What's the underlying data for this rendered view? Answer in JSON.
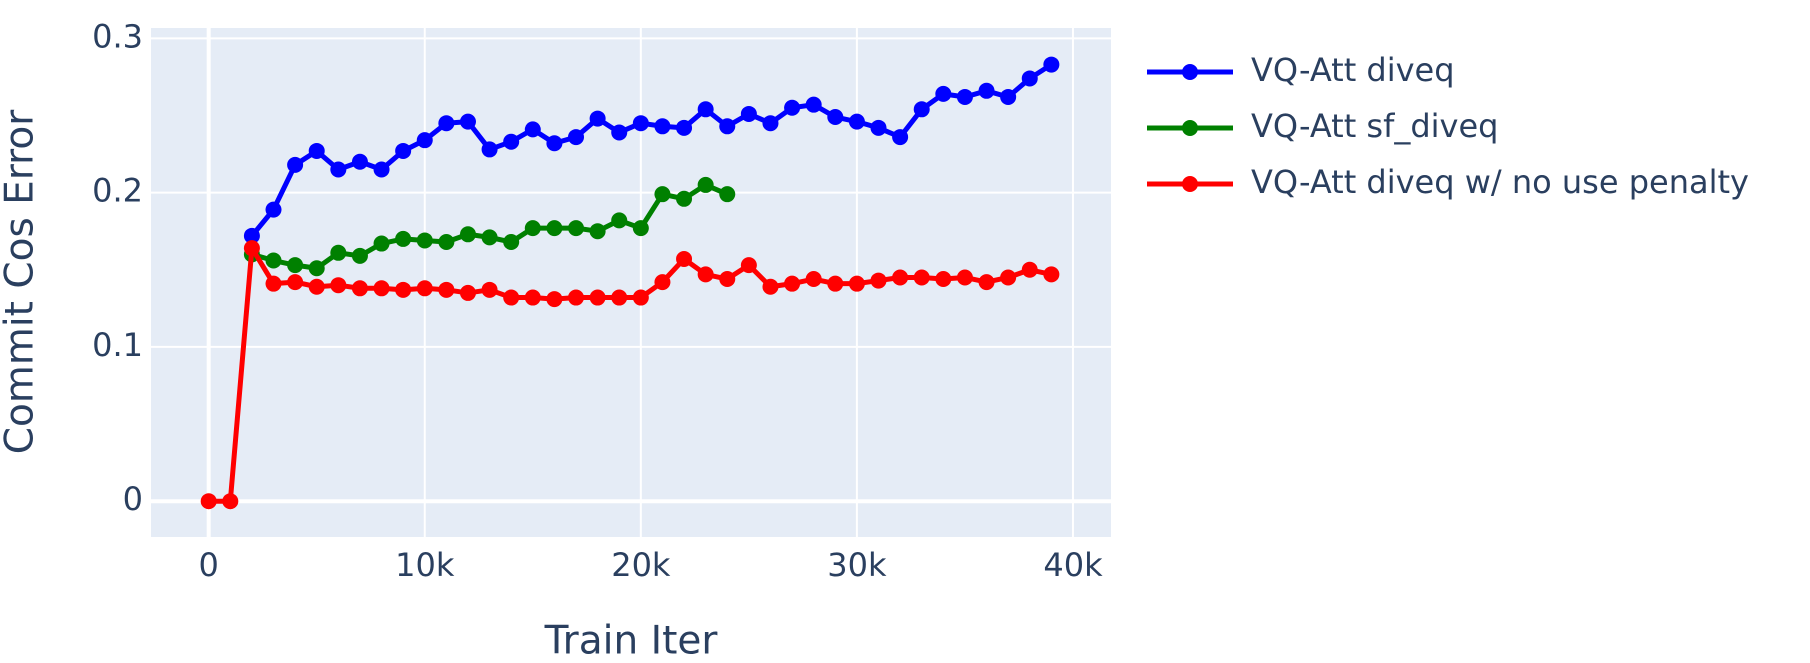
{
  "chart_data": {
    "type": "line",
    "x_label": "Train Iter",
    "y_label": "Commit Cos Error",
    "xlim": [
      -2670,
      41760
    ],
    "ylim": [
      -0.0232,
      0.3067
    ],
    "xticks": [
      0,
      {
        "value": 10000,
        "label": "10k"
      },
      {
        "value": 20000,
        "label": "20k"
      },
      {
        "value": 30000,
        "label": "30k"
      },
      {
        "value": 40000,
        "label": "40k"
      }
    ],
    "yticks": [
      0,
      0.1,
      0.2,
      0.3
    ],
    "grid": true,
    "legend": "outside right",
    "series": [
      {
        "name": "VQ-Att diveq",
        "color": "#0000ff",
        "x": [
          2000,
          3000,
          4000,
          5000,
          6000,
          7000,
          8000,
          9000,
          10000,
          11000,
          12000,
          13000,
          14000,
          15000,
          16000,
          17000,
          18000,
          19000,
          20000,
          21000,
          22000,
          23000,
          24000,
          25000,
          26000,
          27000,
          28000,
          29000,
          30000,
          31000,
          32000,
          33000,
          34000,
          35000,
          36000,
          37000,
          38000,
          39000
        ],
        "values": [
          0.172,
          0.189,
          0.218,
          0.227,
          0.215,
          0.22,
          0.215,
          0.227,
          0.234,
          0.245,
          0.246,
          0.228,
          0.233,
          0.241,
          0.232,
          0.236,
          0.248,
          0.239,
          0.245,
          0.243,
          0.242,
          0.254,
          0.243,
          0.251,
          0.245,
          0.255,
          0.257,
          0.249,
          0.246,
          0.242,
          0.236,
          0.254,
          0.264,
          0.262,
          0.266,
          0.262,
          0.274,
          0.283
        ]
      },
      {
        "name": "VQ-Att sf_diveq",
        "color": "#008000",
        "x": [
          2000,
          3000,
          4000,
          5000,
          6000,
          7000,
          8000,
          9000,
          10000,
          11000,
          12000,
          13000,
          14000,
          15000,
          16000,
          17000,
          18000,
          19000,
          20000,
          21000,
          22000,
          23000,
          24000
        ],
        "values": [
          0.16,
          0.156,
          0.153,
          0.151,
          0.161,
          0.159,
          0.167,
          0.17,
          0.169,
          0.168,
          0.173,
          0.171,
          0.168,
          0.177,
          0.177,
          0.177,
          0.175,
          0.182,
          0.177,
          0.199,
          0.196,
          0.205,
          0.199
        ]
      },
      {
        "name": "VQ-Att diveq w/ no use penalty",
        "color": "#ff0000",
        "x": [
          0,
          1000,
          2000,
          3000,
          4000,
          5000,
          6000,
          7000,
          8000,
          9000,
          10000,
          11000,
          12000,
          13000,
          14000,
          15000,
          16000,
          17000,
          18000,
          19000,
          20000,
          21000,
          22000,
          23000,
          24000,
          25000,
          26000,
          27000,
          28000,
          29000,
          30000,
          31000,
          32000,
          33000,
          34000,
          35000,
          36000,
          37000,
          38000,
          39000
        ],
        "values": [
          0,
          0,
          0.164,
          0.141,
          0.142,
          0.139,
          0.14,
          0.138,
          0.138,
          0.137,
          0.138,
          0.137,
          0.135,
          0.137,
          0.132,
          0.132,
          0.131,
          0.132,
          0.132,
          0.132,
          0.132,
          0.142,
          0.157,
          0.147,
          0.144,
          0.153,
          0.139,
          0.141,
          0.144,
          0.141,
          0.141,
          0.143,
          0.145,
          0.145,
          0.144,
          0.145,
          0.142,
          0.145,
          0.15,
          0.147
        ]
      }
    ]
  }
}
